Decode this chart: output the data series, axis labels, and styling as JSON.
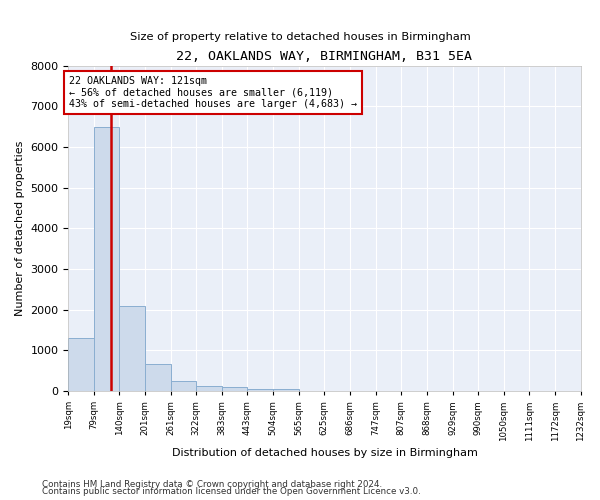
{
  "title": "22, OAKLANDS WAY, BIRMINGHAM, B31 5EA",
  "subtitle": "Size of property relative to detached houses in Birmingham",
  "xlabel": "Distribution of detached houses by size in Birmingham",
  "ylabel": "Number of detached properties",
  "property_size": 121,
  "property_label": "22 OAKLANDS WAY: 121sqm",
  "annotation_line1": "← 56% of detached houses are smaller (6,119)",
  "annotation_line2": "43% of semi-detached houses are larger (4,683) →",
  "footer1": "Contains HM Land Registry data © Crown copyright and database right 2024.",
  "footer2": "Contains public sector information licensed under the Open Government Licence v3.0.",
  "bar_color": "#cddaeb",
  "bar_edge_color": "#8aaed0",
  "highlight_color": "#cc0000",
  "bg_color": "#eaeff8",
  "bins": [
    19,
    79,
    140,
    201,
    261,
    322,
    383,
    443,
    504,
    565,
    625,
    686,
    747,
    807,
    868,
    929,
    990,
    1050,
    1111,
    1172,
    1232
  ],
  "counts": [
    1300,
    6490,
    2080,
    660,
    260,
    130,
    90,
    55,
    55,
    0,
    0,
    0,
    0,
    0,
    0,
    0,
    0,
    0,
    0,
    0
  ],
  "ylim": [
    0,
    8000
  ],
  "yticks": [
    0,
    1000,
    2000,
    3000,
    4000,
    5000,
    6000,
    7000,
    8000
  ]
}
